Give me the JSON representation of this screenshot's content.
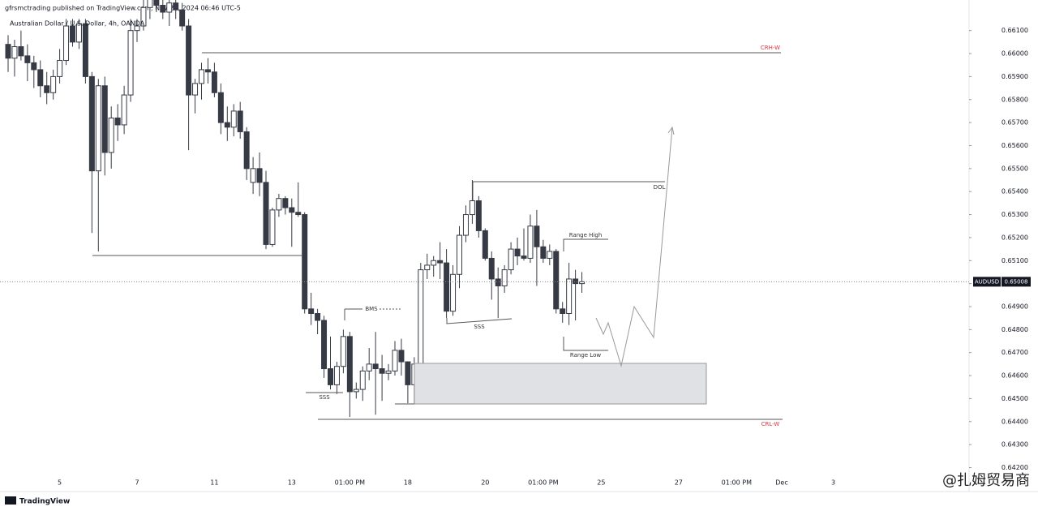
{
  "header": {
    "publisher": "gfrsmctrading published on TradingView.com, Nov 24, 2024 06:46 UTC-5",
    "symbol": "Australian Dollar / U.S. Dollar, 4h, OANDA"
  },
  "footer": {
    "brand": "TradingView",
    "watermark": "@扎姆贸易商"
  },
  "chart_data": {
    "type": "candlestick",
    "categories": [
      null,
      null,
      null,
      null,
      null,
      null,
      null,
      null,
      "5",
      null,
      null,
      null,
      null,
      null,
      null,
      null,
      null,
      null,
      null,
      null,
      "7",
      null,
      null,
      null,
      null,
      null,
      null,
      null,
      null,
      null,
      null,
      null,
      "11",
      null,
      null,
      null,
      null,
      null,
      null,
      null,
      null,
      null,
      null,
      null,
      "13",
      null,
      null,
      null,
      null,
      null,
      null,
      null,
      null,
      "01:00 PM",
      null,
      null,
      null,
      null,
      null,
      null,
      null,
      null,
      "18",
      null,
      null,
      null,
      null,
      null,
      null,
      null,
      null,
      null,
      null,
      null,
      "20",
      null,
      null,
      null,
      null,
      null,
      null,
      null,
      null,
      "01:00 PM",
      null,
      null,
      null,
      null,
      null,
      null,
      null,
      null,
      "25",
      null,
      null,
      null,
      null,
      null,
      null,
      null,
      null,
      null,
      null,
      null,
      "27",
      null,
      null,
      null,
      null,
      null,
      null,
      null,
      null,
      "01:00 PM",
      null,
      null,
      null,
      null,
      null,
      null,
      "Dec",
      null,
      null,
      null,
      null,
      null,
      null,
      null,
      "3",
      null,
      null
    ],
    "open": [
      0.6604,
      0.6598,
      0.6603,
      0.6599,
      0.6596,
      0.6593,
      0.6586,
      0.6583,
      0.659,
      0.6597,
      0.6612,
      0.6605,
      0.6613,
      0.659,
      0.6549,
      0.6586,
      0.6557,
      0.6572,
      0.6569,
      0.6582,
      0.661,
      0.6612,
      0.662,
      0.6624,
      0.6621,
      0.6618,
      0.6622,
      0.6619,
      0.6612,
      0.6582,
      0.6587,
      0.6593,
      0.6592,
      0.6583,
      0.657,
      0.6568,
      0.6575,
      0.6566,
      0.6544,
      0.655,
      0.6544,
      0.6517,
      0.6532,
      0.6537,
      0.6533,
      0.6531,
      0.653,
      0.6489,
      0.6487,
      0.6484,
      0.6463,
      0.6456,
      0.6464,
      0.6477,
      0.6453,
      0.6454,
      0.6462,
      0.6465,
      0.6463,
      0.6461,
      0.6462,
      0.6471,
      0.6466,
      0.6456,
      0.6465,
      0.6506,
      0.6508,
      0.651,
      0.6509,
      0.6488,
      0.6504,
      0.6521,
      0.653,
      0.6536,
      0.6523,
      0.6511,
      0.6502,
      0.6499,
      0.6506,
      0.6515,
      0.6512,
      0.6511,
      0.6525,
      0.6516,
      0.6511,
      0.6514,
      0.6489,
      0.6487,
      0.6502,
      0.65,
      null,
      null,
      null,
      null,
      null,
      null,
      null,
      null,
      null,
      null,
      null,
      null,
      null,
      null,
      null,
      null,
      null,
      null,
      null,
      null,
      null,
      null,
      null,
      null,
      null,
      null,
      null,
      null,
      null,
      null,
      null,
      null,
      null,
      null,
      null,
      null,
      null,
      null,
      null,
      null,
      null
    ],
    "high": [
      0.6608,
      0.6606,
      0.661,
      0.6604,
      0.6599,
      0.6597,
      0.6592,
      0.6593,
      0.6602,
      0.6615,
      0.6615,
      0.6615,
      0.6615,
      0.6592,
      0.6589,
      0.659,
      0.6577,
      0.6578,
      0.6586,
      0.6615,
      0.6615,
      0.6625,
      0.6628,
      0.663,
      0.6626,
      0.6624,
      0.6626,
      0.6622,
      0.6615,
      0.6589,
      0.6596,
      0.6598,
      0.6596,
      0.6587,
      0.6577,
      0.6578,
      0.6579,
      0.6568,
      0.6555,
      0.6557,
      0.6549,
      0.6533,
      0.6539,
      0.6538,
      0.6537,
      0.6544,
      0.6531,
      0.6496,
      0.6489,
      0.6486,
      0.6477,
      0.6466,
      0.648,
      0.6479,
      0.6457,
      0.6464,
      0.6472,
      0.6479,
      0.6469,
      0.6465,
      0.6475,
      0.6476,
      0.6466,
      0.6468,
      0.6509,
      0.6513,
      0.6512,
      0.6518,
      0.6515,
      0.6508,
      0.6525,
      0.6534,
      0.6545,
      0.6538,
      0.6524,
      0.6514,
      0.6507,
      0.6508,
      0.6518,
      0.652,
      0.6524,
      0.653,
      0.6532,
      0.6519,
      0.6517,
      0.6515,
      0.6492,
      0.6509,
      0.6506,
      0.6505,
      null,
      null,
      null,
      null,
      null,
      null,
      null,
      null,
      null,
      null,
      null,
      null,
      null,
      null,
      null,
      null,
      null,
      null,
      null,
      null,
      null,
      null,
      null,
      null,
      null,
      null,
      null,
      null,
      null,
      null,
      null,
      null,
      null,
      null,
      null,
      null,
      null,
      null,
      null,
      null,
      null
    ],
    "low": [
      0.6592,
      0.659,
      0.6597,
      0.6588,
      0.6585,
      0.6581,
      0.6578,
      0.658,
      0.6587,
      0.6595,
      0.6603,
      0.6602,
      0.6587,
      0.6522,
      0.6514,
      0.6547,
      0.655,
      0.6562,
      0.6565,
      0.6579,
      0.6605,
      0.661,
      0.6615,
      0.6618,
      0.6615,
      0.6612,
      0.6615,
      0.661,
      0.6558,
      0.6574,
      0.658,
      0.6587,
      0.6581,
      0.6565,
      0.6562,
      0.6564,
      0.6563,
      0.6545,
      0.6539,
      0.6538,
      0.6515,
      0.6516,
      0.6529,
      0.653,
      0.6516,
      0.6529,
      0.6487,
      0.6482,
      0.6478,
      0.6459,
      0.6454,
      0.6452,
      0.6461,
      0.6442,
      0.645,
      0.6449,
      0.6458,
      0.6443,
      0.6449,
      0.6458,
      0.646,
      0.646,
      0.6448,
      0.6448,
      0.6462,
      0.6502,
      0.6503,
      0.6502,
      0.6485,
      0.6486,
      0.6498,
      0.6518,
      0.6526,
      0.652,
      0.651,
      0.6493,
      0.6485,
      0.6496,
      0.6504,
      0.6508,
      0.651,
      0.6509,
      0.6499,
      0.6509,
      0.6508,
      0.6487,
      0.6483,
      0.6482,
      0.6484,
      0.6496,
      null,
      null,
      null,
      null,
      null,
      null,
      null,
      null,
      null,
      null,
      null,
      null,
      null,
      null,
      null,
      null,
      null,
      null,
      null,
      null,
      null,
      null,
      null,
      null,
      null,
      null,
      null,
      null,
      null,
      null,
      null,
      null,
      null,
      null,
      null,
      null,
      null,
      null,
      null,
      null,
      null
    ],
    "close": [
      0.6598,
      0.6603,
      0.6599,
      0.6596,
      0.6593,
      0.6586,
      0.6583,
      0.659,
      0.6597,
      0.6612,
      0.6605,
      0.6613,
      0.659,
      0.6549,
      0.6586,
      0.6557,
      0.6572,
      0.6569,
      0.6582,
      0.661,
      0.6612,
      0.662,
      0.6624,
      0.6621,
      0.6618,
      0.6622,
      0.6619,
      0.6612,
      0.6582,
      0.6587,
      0.6593,
      0.6592,
      0.6583,
      0.657,
      0.6568,
      0.6575,
      0.6566,
      0.655,
      0.655,
      0.6544,
      0.6517,
      0.6532,
      0.6537,
      0.6533,
      0.6531,
      0.653,
      0.6489,
      0.6487,
      0.6484,
      0.6463,
      0.6456,
      0.6464,
      0.6477,
      0.6453,
      0.6454,
      0.6462,
      0.6465,
      0.6463,
      0.6461,
      0.6462,
      0.6471,
      0.6466,
      0.6456,
      0.6465,
      0.6506,
      0.6508,
      0.651,
      0.6509,
      0.6488,
      0.6504,
      0.6521,
      0.653,
      0.6536,
      0.6523,
      0.6511,
      0.6502,
      0.6499,
      0.6506,
      0.6515,
      0.6512,
      0.6511,
      0.6525,
      0.6516,
      0.6511,
      0.6514,
      0.6489,
      0.6487,
      0.6502,
      0.65,
      0.65008,
      null,
      null,
      null,
      null,
      null,
      null,
      null,
      null,
      null,
      null,
      null,
      null,
      null,
      null,
      null,
      null,
      null,
      null,
      null,
      null,
      null,
      null,
      null,
      null,
      null,
      null,
      null,
      null,
      null,
      null,
      null,
      null,
      null,
      null,
      null,
      null,
      null,
      null,
      null,
      null,
      null
    ],
    "up_color": "#ffffff",
    "down_color": "#363a45",
    "edge_color": "#363a45",
    "ylim": [
      0.6417,
      0.6618
    ],
    "yticks": [
      {
        "value": 0.661,
        "label": "0.66100"
      },
      {
        "value": 0.66,
        "label": "0.66000"
      },
      {
        "value": 0.659,
        "label": "0.65900"
      },
      {
        "value": 0.658,
        "label": "0.65800"
      },
      {
        "value": 0.657,
        "label": "0.65700"
      },
      {
        "value": 0.656,
        "label": "0.65600"
      },
      {
        "value": 0.655,
        "label": "0.65500"
      },
      {
        "value": 0.654,
        "label": "0.65400"
      },
      {
        "value": 0.653,
        "label": "0.65300"
      },
      {
        "value": 0.652,
        "label": "0.65200"
      },
      {
        "value": 0.651,
        "label": "0.65100"
      },
      {
        "value": 0.65,
        "label": "0.65000"
      },
      {
        "value": 0.649,
        "label": "0.64900"
      },
      {
        "value": 0.648,
        "label": "0.64800"
      },
      {
        "value": 0.647,
        "label": "0.64700"
      },
      {
        "value": 0.646,
        "label": "0.64600"
      },
      {
        "value": 0.645,
        "label": "0.64500"
      },
      {
        "value": 0.644,
        "label": "0.64400"
      },
      {
        "value": 0.643,
        "label": "0.64300"
      },
      {
        "value": 0.642,
        "label": "0.64200"
      }
    ],
    "price_label": {
      "name": "AUDUSD",
      "value": 0.65008,
      "label": "0.65008"
    },
    "annotations": {
      "crh": "CRH-W",
      "crl": "CRL-W",
      "bms": "BMS",
      "sss1": "SSS",
      "sss2": "SSS",
      "dol": "DOL",
      "range_high": "Range High",
      "range_low": "Range Low"
    }
  }
}
